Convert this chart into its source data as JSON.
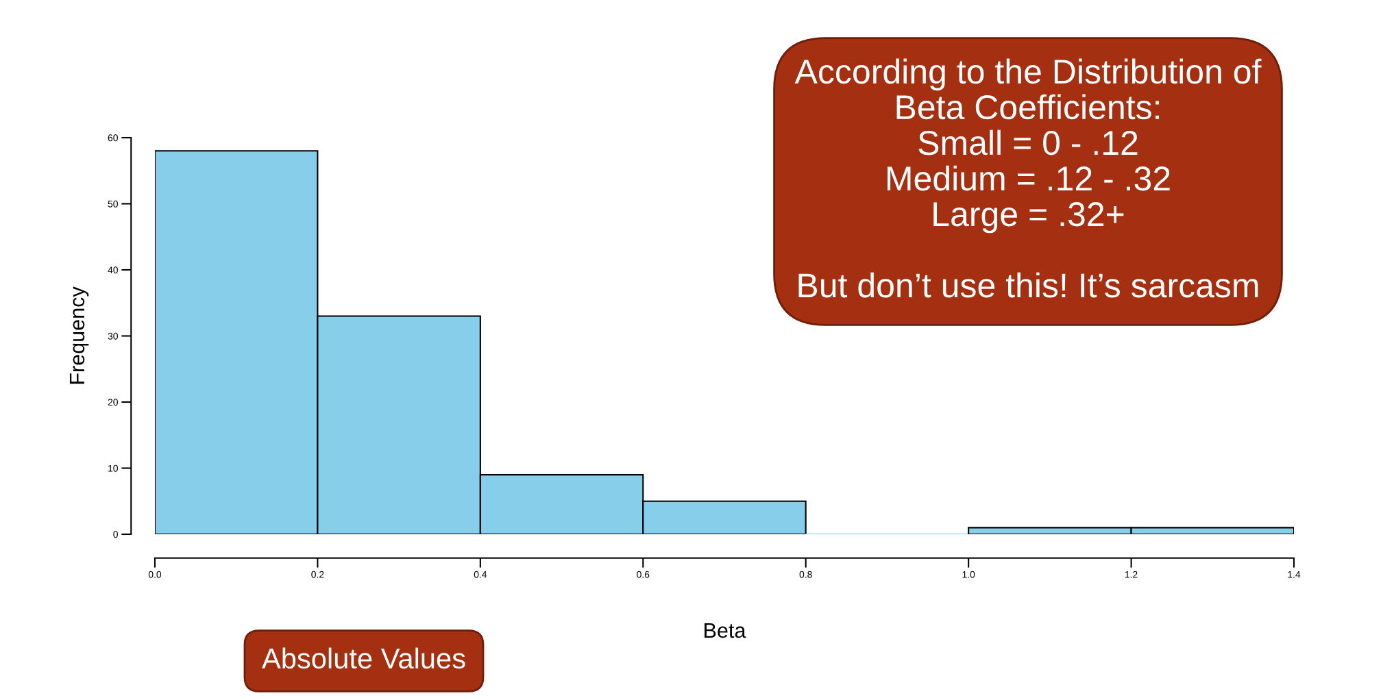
{
  "chart_data": {
    "type": "histogram",
    "xlabel": "Beta",
    "ylabel": "Frequency",
    "bins": [
      0.0,
      0.2,
      0.4,
      0.6,
      0.8,
      1.0,
      1.2,
      1.4
    ],
    "values": [
      58,
      33,
      9,
      5,
      0,
      1,
      1
    ],
    "color": "#87ceeb",
    "xlim": [
      0.0,
      1.4
    ],
    "xticks": [
      {
        "value": 0.0,
        "label": "0.0"
      },
      0.2,
      0.4,
      0.6,
      0.8,
      {
        "value": 1.0,
        "label": "1.0"
      },
      1.2,
      1.4
    ],
    "ylim": [
      0,
      60
    ],
    "yticks": [
      0,
      10,
      20,
      30,
      40,
      50,
      60
    ],
    "grid": false,
    "legend": false,
    "annotations": [
      "According to the Distribution of\nBeta Coefficients:\nSmall = 0 - .12\nMedium = .12 - .32\nLarge = .32+\n\nBut don’t use this! It’s sarcasm",
      "Absolute Values"
    ]
  }
}
